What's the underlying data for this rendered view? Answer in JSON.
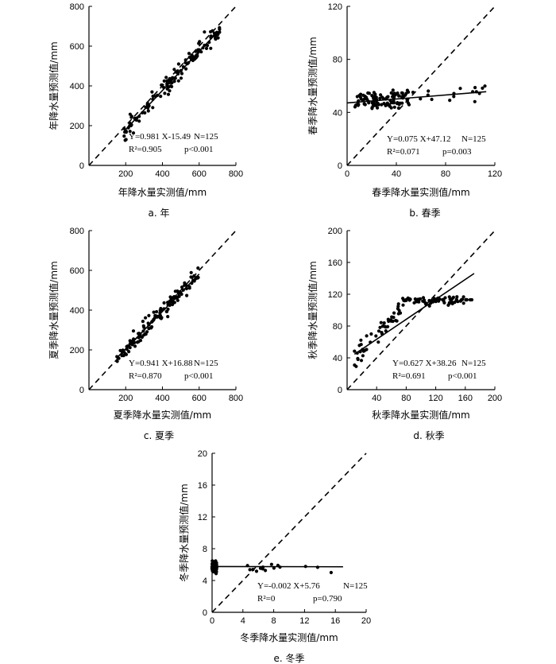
{
  "chart_data": [
    {
      "type": "scatter",
      "caption": "a. 年",
      "xlabel": "年降水量实测值/mm",
      "ylabel": "年降水量预测值/mm",
      "xlim": [
        0,
        800
      ],
      "ylim": [
        0,
        800
      ],
      "xticks": [
        "200",
        "400",
        "600",
        "800"
      ],
      "yticks": [
        "0",
        "200",
        "400",
        "600",
        "800"
      ],
      "fit": {
        "slope": 0.981,
        "intercept": -15.49,
        "x_range": [
          200,
          700
        ]
      },
      "stats": {
        "eq": "Y=0.981 X-15.49",
        "n": "N=125",
        "r2": "R²=0.905",
        "p": "p<0.001"
      },
      "points_summary": {
        "x_range": [
          190,
          720
        ],
        "trend_slope": 0.981,
        "trend_intercept": -15.49,
        "count": 125
      }
    },
    {
      "type": "scatter",
      "caption": "b. 春季",
      "xlabel": "春季降水量实测值/mm",
      "ylabel": "春季降水量预测值/mm",
      "xlim": [
        0,
        120
      ],
      "ylim": [
        0,
        120
      ],
      "xticks": [
        "0",
        "40",
        "80",
        "120"
      ],
      "yticks": [
        "0",
        "40",
        "80",
        "120"
      ],
      "fit": {
        "slope": 0.075,
        "intercept": 47.12,
        "x_range": [
          0,
          113
        ]
      },
      "stats": {
        "eq": "Y=0.075 X+47.12",
        "n": "N=125",
        "r2": "R²=0.071",
        "p": "p=0.003"
      },
      "points_summary": {
        "x_range": [
          0,
          113
        ],
        "trend_slope": 0.075,
        "trend_intercept": 47.12,
        "count": 125
      }
    },
    {
      "type": "scatter",
      "caption": "c. 夏季",
      "xlabel": "夏季降水量实测值/mm",
      "ylabel": "夏季降水量预测值/mm",
      "xlim": [
        0,
        800
      ],
      "ylim": [
        0,
        800
      ],
      "xticks": [
        "200",
        "400",
        "600",
        "800"
      ],
      "yticks": [
        "0",
        "200",
        "400",
        "600",
        "800"
      ],
      "fit": {
        "slope": 0.941,
        "intercept": 16.88,
        "x_range": [
          150,
          600
        ]
      },
      "stats": {
        "eq": "Y=0.941 X+16.88",
        "n": "N=125",
        "r2": "R²=0.870",
        "p": "p<0.001"
      },
      "points_summary": {
        "x_range": [
          150,
          600
        ],
        "trend_slope": 0.941,
        "trend_intercept": 16.88,
        "count": 125
      }
    },
    {
      "type": "scatter",
      "caption": "d. 秋季",
      "xlabel": "秋季降水量实测值/mm",
      "ylabel": "秋季降水量预测值/mm",
      "xlim": [
        0,
        200
      ],
      "ylim": [
        0,
        200
      ],
      "xticks": [
        "40",
        "80",
        "120",
        "160",
        "200"
      ],
      "yticks": [
        "0",
        "40",
        "80",
        "120",
        "160",
        "200"
      ],
      "fit": {
        "slope": 0.627,
        "intercept": 38.26,
        "x_range": [
          10,
          172
        ]
      },
      "stats": {
        "eq": "Y=0.627 X+38.26",
        "n": "N=125",
        "r2": "R²=0.691",
        "p": "p<0.001"
      },
      "points_summary": {
        "x_range": [
          10,
          170
        ],
        "trend_slope": 0.627,
        "trend_intercept": 38.26,
        "count": 125
      }
    },
    {
      "type": "scatter",
      "caption": "e. 冬季",
      "xlabel": "冬季降水量实测值/mm",
      "ylabel": "冬季降水量预测值/mm",
      "xlim": [
        0,
        20
      ],
      "ylim": [
        0,
        20
      ],
      "xticks": [
        "0",
        "4",
        "8",
        "12",
        "16",
        "20"
      ],
      "yticks": [
        "0",
        "4",
        "8",
        "12",
        "16",
        "20"
      ],
      "fit": {
        "slope": -0.002,
        "intercept": 5.76,
        "x_range": [
          0,
          17
        ]
      },
      "stats": {
        "eq": "Y=-0.002 X+5.76",
        "n": "N=125",
        "r2": "R²=0",
        "p": "p=0.790"
      },
      "points_summary": {
        "x_range": [
          0,
          17
        ],
        "trend_slope": -0.002,
        "trend_intercept": 5.76,
        "count": 125
      }
    }
  ]
}
